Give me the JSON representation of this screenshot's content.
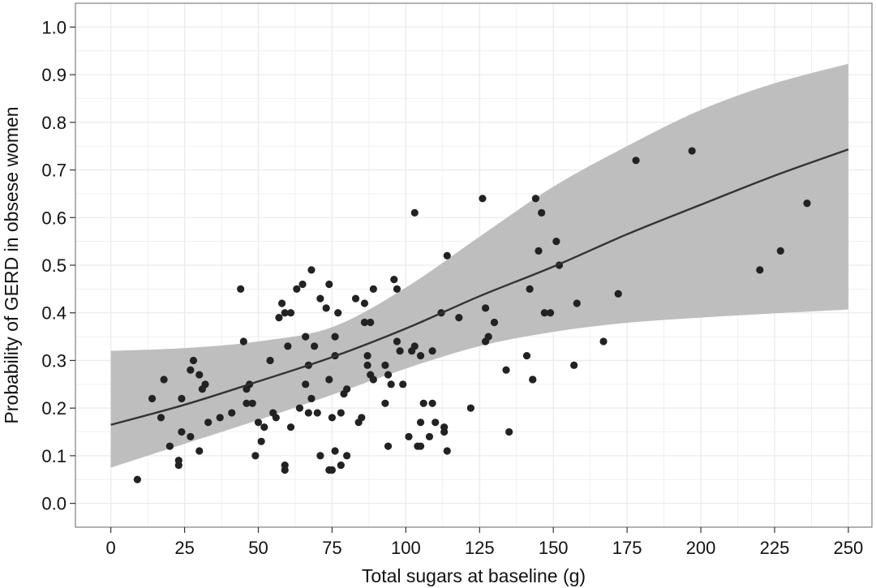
{
  "chart_data": {
    "type": "scatter",
    "title": "",
    "xlabel": "Total sugars at baseline (g)",
    "ylabel": "Probability of GERD in obsese women",
    "xlim": [
      -12,
      258
    ],
    "ylim": [
      -0.05,
      1.05
    ],
    "x_ticks": [
      0,
      25,
      50,
      75,
      100,
      125,
      150,
      175,
      200,
      225,
      250
    ],
    "y_ticks": [
      0.0,
      0.1,
      0.2,
      0.3,
      0.4,
      0.5,
      0.6,
      0.7,
      0.8,
      0.9,
      1.0
    ],
    "x_tick_labels": [
      "0",
      "25",
      "50",
      "75",
      "100",
      "125",
      "150",
      "175",
      "200",
      "225",
      "250"
    ],
    "y_tick_labels": [
      "0.0",
      "0.1",
      "0.2",
      "0.3",
      "0.4",
      "0.5",
      "0.6",
      "0.7",
      "0.8",
      "0.9",
      "1.0"
    ],
    "grid": true,
    "legend": "none",
    "colors": {
      "panel_background": "#ffffff",
      "grid": "#ebebeb",
      "border": "#7f7f7f",
      "band": "#bebebe",
      "line": "#333333",
      "points": "#222222"
    },
    "fit_line": {
      "x": [
        0,
        25,
        50,
        75,
        100,
        125,
        150,
        175,
        200,
        225,
        250
      ],
      "y": [
        0.165,
        0.207,
        0.256,
        0.307,
        0.367,
        0.435,
        0.497,
        0.565,
        0.627,
        0.688,
        0.743
      ]
    },
    "confidence_band": {
      "x": [
        0,
        25,
        50,
        75,
        100,
        125,
        150,
        175,
        200,
        225,
        250
      ],
      "lower": [
        0.075,
        0.125,
        0.175,
        0.228,
        0.283,
        0.33,
        0.36,
        0.379,
        0.39,
        0.399,
        0.407
      ],
      "upper": [
        0.32,
        0.326,
        0.34,
        0.37,
        0.453,
        0.56,
        0.665,
        0.75,
        0.826,
        0.882,
        0.923
      ]
    },
    "points": [
      {
        "x": 9,
        "y": 0.05
      },
      {
        "x": 14,
        "y": 0.22
      },
      {
        "x": 17,
        "y": 0.18
      },
      {
        "x": 18,
        "y": 0.26
      },
      {
        "x": 20,
        "y": 0.12
      },
      {
        "x": 23,
        "y": 0.08
      },
      {
        "x": 23,
        "y": 0.09
      },
      {
        "x": 24,
        "y": 0.15
      },
      {
        "x": 24,
        "y": 0.22
      },
      {
        "x": 27,
        "y": 0.14
      },
      {
        "x": 27,
        "y": 0.28
      },
      {
        "x": 28,
        "y": 0.3
      },
      {
        "x": 30,
        "y": 0.11
      },
      {
        "x": 30,
        "y": 0.27
      },
      {
        "x": 31,
        "y": 0.24
      },
      {
        "x": 32,
        "y": 0.25
      },
      {
        "x": 33,
        "y": 0.17
      },
      {
        "x": 37,
        "y": 0.18
      },
      {
        "x": 41,
        "y": 0.19
      },
      {
        "x": 44,
        "y": 0.45
      },
      {
        "x": 45,
        "y": 0.34
      },
      {
        "x": 46,
        "y": 0.21
      },
      {
        "x": 46,
        "y": 0.24
      },
      {
        "x": 47,
        "y": 0.25
      },
      {
        "x": 48,
        "y": 0.21
      },
      {
        "x": 49,
        "y": 0.1
      },
      {
        "x": 50,
        "y": 0.17
      },
      {
        "x": 51,
        "y": 0.13
      },
      {
        "x": 52,
        "y": 0.16
      },
      {
        "x": 54,
        "y": 0.3
      },
      {
        "x": 55,
        "y": 0.19
      },
      {
        "x": 56,
        "y": 0.18
      },
      {
        "x": 57,
        "y": 0.39
      },
      {
        "x": 58,
        "y": 0.42
      },
      {
        "x": 59,
        "y": 0.08
      },
      {
        "x": 59,
        "y": 0.07
      },
      {
        "x": 59,
        "y": 0.4
      },
      {
        "x": 60,
        "y": 0.33
      },
      {
        "x": 61,
        "y": 0.16
      },
      {
        "x": 61,
        "y": 0.4
      },
      {
        "x": 63,
        "y": 0.45
      },
      {
        "x": 64,
        "y": 0.2
      },
      {
        "x": 65,
        "y": 0.46
      },
      {
        "x": 66,
        "y": 0.35
      },
      {
        "x": 66,
        "y": 0.25
      },
      {
        "x": 67,
        "y": 0.29
      },
      {
        "x": 67,
        "y": 0.19
      },
      {
        "x": 68,
        "y": 0.49
      },
      {
        "x": 68,
        "y": 0.22
      },
      {
        "x": 69,
        "y": 0.33
      },
      {
        "x": 70,
        "y": 0.19
      },
      {
        "x": 71,
        "y": 0.43
      },
      {
        "x": 71,
        "y": 0.1
      },
      {
        "x": 73,
        "y": 0.41
      },
      {
        "x": 74,
        "y": 0.46
      },
      {
        "x": 74,
        "y": 0.26
      },
      {
        "x": 74,
        "y": 0.07
      },
      {
        "x": 75,
        "y": 0.18
      },
      {
        "x": 75,
        "y": 0.07
      },
      {
        "x": 76,
        "y": 0.35
      },
      {
        "x": 76,
        "y": 0.31
      },
      {
        "x": 76,
        "y": 0.11
      },
      {
        "x": 77,
        "y": 0.4
      },
      {
        "x": 78,
        "y": 0.19
      },
      {
        "x": 78,
        "y": 0.08
      },
      {
        "x": 79,
        "y": 0.23
      },
      {
        "x": 80,
        "y": 0.24
      },
      {
        "x": 80,
        "y": 0.1
      },
      {
        "x": 83,
        "y": 0.43
      },
      {
        "x": 84,
        "y": 0.17
      },
      {
        "x": 85,
        "y": 0.18
      },
      {
        "x": 86,
        "y": 0.42
      },
      {
        "x": 86,
        "y": 0.38
      },
      {
        "x": 87,
        "y": 0.31
      },
      {
        "x": 87,
        "y": 0.29
      },
      {
        "x": 88,
        "y": 0.27
      },
      {
        "x": 88,
        "y": 0.38
      },
      {
        "x": 89,
        "y": 0.45
      },
      {
        "x": 89,
        "y": 0.26
      },
      {
        "x": 93,
        "y": 0.21
      },
      {
        "x": 93,
        "y": 0.29
      },
      {
        "x": 94,
        "y": 0.12
      },
      {
        "x": 94,
        "y": 0.27
      },
      {
        "x": 95,
        "y": 0.25
      },
      {
        "x": 96,
        "y": 0.47
      },
      {
        "x": 97,
        "y": 0.45
      },
      {
        "x": 97,
        "y": 0.34
      },
      {
        "x": 98,
        "y": 0.32
      },
      {
        "x": 99,
        "y": 0.25
      },
      {
        "x": 101,
        "y": 0.14
      },
      {
        "x": 102,
        "y": 0.32
      },
      {
        "x": 103,
        "y": 0.61
      },
      {
        "x": 103,
        "y": 0.33
      },
      {
        "x": 104,
        "y": 0.12
      },
      {
        "x": 105,
        "y": 0.12
      },
      {
        "x": 105,
        "y": 0.17
      },
      {
        "x": 105,
        "y": 0.31
      },
      {
        "x": 106,
        "y": 0.21
      },
      {
        "x": 108,
        "y": 0.14
      },
      {
        "x": 109,
        "y": 0.32
      },
      {
        "x": 109,
        "y": 0.21
      },
      {
        "x": 110,
        "y": 0.17
      },
      {
        "x": 112,
        "y": 0.4
      },
      {
        "x": 113,
        "y": 0.16
      },
      {
        "x": 113,
        "y": 0.15
      },
      {
        "x": 114,
        "y": 0.52
      },
      {
        "x": 114,
        "y": 0.11
      },
      {
        "x": 118,
        "y": 0.39
      },
      {
        "x": 122,
        "y": 0.2
      },
      {
        "x": 126,
        "y": 0.64
      },
      {
        "x": 127,
        "y": 0.34
      },
      {
        "x": 127,
        "y": 0.41
      },
      {
        "x": 128,
        "y": 0.35
      },
      {
        "x": 130,
        "y": 0.38
      },
      {
        "x": 134,
        "y": 0.28
      },
      {
        "x": 135,
        "y": 0.15
      },
      {
        "x": 141,
        "y": 0.31
      },
      {
        "x": 142,
        "y": 0.45
      },
      {
        "x": 143,
        "y": 0.26
      },
      {
        "x": 143,
        "y": 0.26
      },
      {
        "x": 144,
        "y": 0.64
      },
      {
        "x": 145,
        "y": 0.53
      },
      {
        "x": 146,
        "y": 0.61
      },
      {
        "x": 147,
        "y": 0.4
      },
      {
        "x": 149,
        "y": 0.4
      },
      {
        "x": 151,
        "y": 0.55
      },
      {
        "x": 152,
        "y": 0.5
      },
      {
        "x": 157,
        "y": 0.29
      },
      {
        "x": 158,
        "y": 0.42
      },
      {
        "x": 167,
        "y": 0.34
      },
      {
        "x": 172,
        "y": 0.44
      },
      {
        "x": 178,
        "y": 0.72
      },
      {
        "x": 197,
        "y": 0.74
      },
      {
        "x": 220,
        "y": 0.49
      },
      {
        "x": 227,
        "y": 0.53
      },
      {
        "x": 236,
        "y": 0.63
      }
    ]
  }
}
